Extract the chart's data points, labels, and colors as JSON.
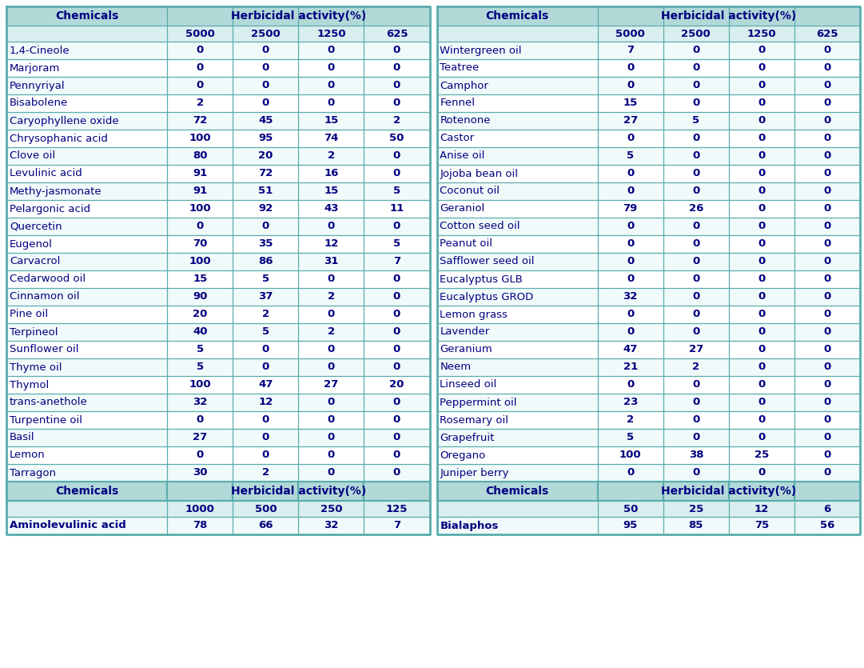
{
  "left_table": {
    "header1": [
      "Chemicals",
      "Herbicidal activity(%)"
    ],
    "header2": [
      "",
      "5000",
      "2500",
      "1250",
      "625"
    ],
    "rows": [
      [
        "1,4-Cineole",
        "0",
        "0",
        "0",
        "0"
      ],
      [
        "Marjoram",
        "0",
        "0",
        "0",
        "0"
      ],
      [
        "Pennyriyal",
        "0",
        "0",
        "0",
        "0"
      ],
      [
        "Bisabolene",
        "2",
        "0",
        "0",
        "0"
      ],
      [
        "Caryophyllene oxide",
        "72",
        "45",
        "15",
        "2"
      ],
      [
        "Chrysophanic acid",
        "100",
        "95",
        "74",
        "50"
      ],
      [
        "Clove oil",
        "80",
        "20",
        "2",
        "0"
      ],
      [
        "Levulinic acid",
        "91",
        "72",
        "16",
        "0"
      ],
      [
        "Methy-jasmonate",
        "91",
        "51",
        "15",
        "5"
      ],
      [
        "Pelargonic acid",
        "100",
        "92",
        "43",
        "11"
      ],
      [
        "Quercetin",
        "0",
        "0",
        "0",
        "0"
      ],
      [
        "Eugenol",
        "70",
        "35",
        "12",
        "5"
      ],
      [
        "Carvacrol",
        "100",
        "86",
        "31",
        "7"
      ],
      [
        "Cedarwood oil",
        "15",
        "5",
        "0",
        "0"
      ],
      [
        "Cinnamon oil",
        "90",
        "37",
        "2",
        "0"
      ],
      [
        "Pine oil",
        "20",
        "2",
        "0",
        "0"
      ],
      [
        "Terpineol",
        "40",
        "5",
        "2",
        "0"
      ],
      [
        "Sunflower oil",
        "5",
        "0",
        "0",
        "0"
      ],
      [
        "Thyme oil",
        "5",
        "0",
        "0",
        "0"
      ],
      [
        "Thymol",
        "100",
        "47",
        "27",
        "20"
      ],
      [
        "trans-anethole",
        "32",
        "12",
        "0",
        "0"
      ],
      [
        "Turpentine oil",
        "0",
        "0",
        "0",
        "0"
      ],
      [
        "Basil",
        "27",
        "0",
        "0",
        "0"
      ],
      [
        "Lemon",
        "0",
        "0",
        "0",
        "0"
      ],
      [
        "Tarragon",
        "30",
        "2",
        "0",
        "0"
      ]
    ],
    "footer_header1": [
      "Chemicals",
      "Herbicidal activity(%)"
    ],
    "footer_header2": [
      "",
      "1000",
      "500",
      "250",
      "125"
    ],
    "footer_rows": [
      [
        "Aminolevulinic acid",
        "78",
        "66",
        "32",
        "7"
      ]
    ]
  },
  "right_table": {
    "header1": [
      "Chemicals",
      "Herbicidal activity(%)"
    ],
    "header2": [
      "",
      "5000",
      "2500",
      "1250",
      "625"
    ],
    "rows": [
      [
        "Wintergreen oil",
        "7",
        "0",
        "0",
        "0"
      ],
      [
        "Teatree",
        "0",
        "0",
        "0",
        "0"
      ],
      [
        "Camphor",
        "0",
        "0",
        "0",
        "0"
      ],
      [
        "Fennel",
        "15",
        "0",
        "0",
        "0"
      ],
      [
        "Rotenone",
        "27",
        "5",
        "0",
        "0"
      ],
      [
        "Castor",
        "0",
        "0",
        "0",
        "0"
      ],
      [
        "Anise oil",
        "5",
        "0",
        "0",
        "0"
      ],
      [
        "Jojoba bean oil",
        "0",
        "0",
        "0",
        "0"
      ],
      [
        "Coconut oil",
        "0",
        "0",
        "0",
        "0"
      ],
      [
        "Geraniol",
        "79",
        "26",
        "0",
        "0"
      ],
      [
        "Cotton seed oil",
        "0",
        "0",
        "0",
        "0"
      ],
      [
        "Peanut oil",
        "0",
        "0",
        "0",
        "0"
      ],
      [
        "Safflower seed oil",
        "0",
        "0",
        "0",
        "0"
      ],
      [
        "Eucalyptus GLB",
        "0",
        "0",
        "0",
        "0"
      ],
      [
        "Eucalyptus GROD",
        "32",
        "0",
        "0",
        "0"
      ],
      [
        "Lemon grass",
        "0",
        "0",
        "0",
        "0"
      ],
      [
        "Lavender",
        "0",
        "0",
        "0",
        "0"
      ],
      [
        "Geranium",
        "47",
        "27",
        "0",
        "0"
      ],
      [
        "Neem",
        "21",
        "2",
        "0",
        "0"
      ],
      [
        "Linseed oil",
        "0",
        "0",
        "0",
        "0"
      ],
      [
        "Peppermint oil",
        "23",
        "0",
        "0",
        "0"
      ],
      [
        "Rosemary oil",
        "2",
        "0",
        "0",
        "0"
      ],
      [
        "Grapefruit",
        "5",
        "0",
        "0",
        "0"
      ],
      [
        "Oregano",
        "100",
        "38",
        "25",
        "0"
      ],
      [
        "Juniper berry",
        "0",
        "0",
        "0",
        "0"
      ]
    ],
    "footer_header1": [
      "Chemicals",
      "Herbicidal activity(%)"
    ],
    "footer_header2": [
      "",
      "50",
      "25",
      "12",
      "6"
    ],
    "footer_rows": [
      [
        "Bialaphos",
        "95",
        "85",
        "75",
        "56"
      ]
    ]
  },
  "header_bg": "#b2d8d8",
  "header2_bg": "#d9eeee",
  "row_bg_even": "#ffffff",
  "row_bg_odd": "#f0fafa",
  "footer_bg": "#b2d8d8",
  "border_color": "#5aacac",
  "text_color": "#000080",
  "header_text_color": "#000080",
  "font_size": 9.5,
  "header_font_size": 10
}
